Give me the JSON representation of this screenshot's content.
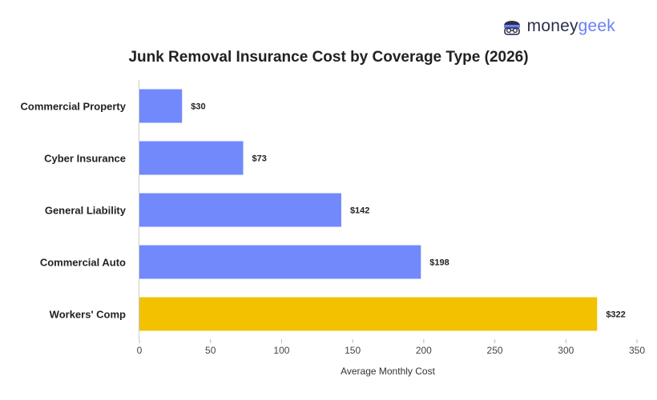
{
  "brand": {
    "name_part1": "money",
    "name_part2": "geek",
    "icon": "moneygeek-face-icon"
  },
  "chart_data": {
    "type": "bar",
    "orientation": "horizontal",
    "title": "Junk Removal Insurance Cost by Coverage Type (2026)",
    "xlabel": "Average Monthly Cost",
    "ylabel": "",
    "categories": [
      "Commercial Property",
      "Cyber Insurance",
      "General Liability",
      "Commercial Auto",
      "Workers' Comp"
    ],
    "values": [
      30,
      73,
      142,
      198,
      322
    ],
    "value_labels": [
      "$30",
      "$73",
      "$142",
      "$198",
      "$322"
    ],
    "xlim": [
      0,
      350
    ],
    "xticks": [
      0,
      50,
      100,
      150,
      200,
      250,
      300,
      350
    ],
    "grid": false,
    "colors": [
      "#7289fb",
      "#7289fb",
      "#7289fb",
      "#7289fb",
      "#f2c200"
    ]
  }
}
